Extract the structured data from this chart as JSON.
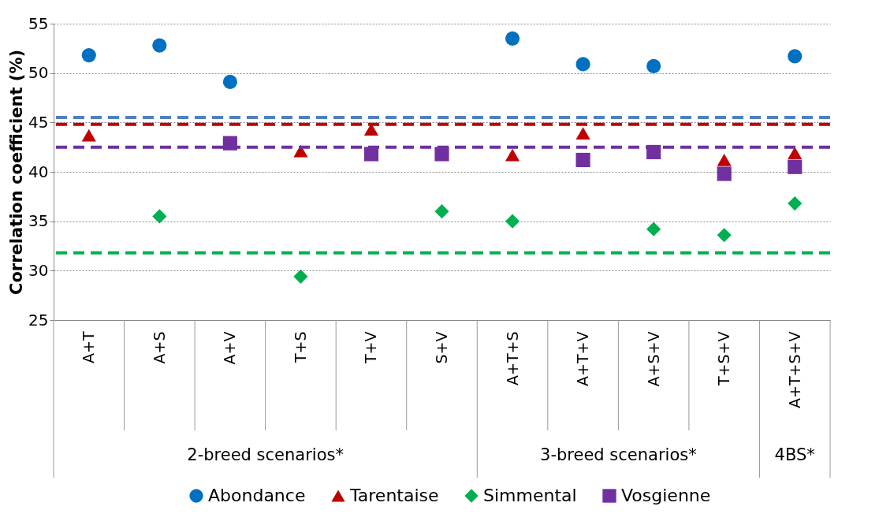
{
  "chart_data": {
    "type": "scatter",
    "ylabel": "Correlation coefficient (%)",
    "categories": [
      "A+T",
      "A+S",
      "A+V",
      "T+S",
      "T+V",
      "S+V",
      "A+T+S",
      "A+T+V",
      "A+S+V",
      "T+S+V",
      "A+T+S+V"
    ],
    "series": [
      {
        "name": "Abondance",
        "color": "#0070c0",
        "marker": "circle",
        "values": [
          51.8,
          52.8,
          49.1,
          null,
          null,
          null,
          53.5,
          50.9,
          50.7,
          null,
          51.7
        ]
      },
      {
        "name": "Tarentaise",
        "color": "#c00000",
        "marker": "triangle",
        "values": [
          43.7,
          null,
          null,
          42.1,
          44.3,
          null,
          41.7,
          43.9,
          null,
          41.2,
          41.9
        ]
      },
      {
        "name": "Simmental",
        "color": "#00b050",
        "marker": "diamond",
        "values": [
          null,
          35.5,
          null,
          29.4,
          null,
          36.0,
          35.0,
          null,
          34.2,
          33.6,
          36.8
        ]
      },
      {
        "name": "Vosgienne",
        "color": "#7030a0",
        "marker": "square",
        "values": [
          null,
          null,
          42.9,
          null,
          41.8,
          41.8,
          null,
          41.2,
          42.0,
          39.8,
          40.5
        ]
      }
    ],
    "ref_lines": [
      {
        "axis": "y",
        "value": 45.5,
        "color": "#4f81bd",
        "line_style": "dashed"
      },
      {
        "axis": "y",
        "value": 44.8,
        "color": "#c00000",
        "line_style": "dashed"
      },
      {
        "axis": "y",
        "value": 42.5,
        "color": "#7030a0",
        "line_style": "dashed"
      },
      {
        "axis": "y",
        "value": 31.8,
        "color": "#00b050",
        "line_style": "dashed"
      }
    ],
    "annotations": [
      "2-breed scenarios*",
      "3-breed scenarios*",
      "4BS*"
    ],
    "ylim": [
      25,
      55
    ],
    "yticks": [
      25,
      30,
      35,
      40,
      45,
      50,
      55
    ],
    "grid": "y",
    "legend": "bottom"
  }
}
